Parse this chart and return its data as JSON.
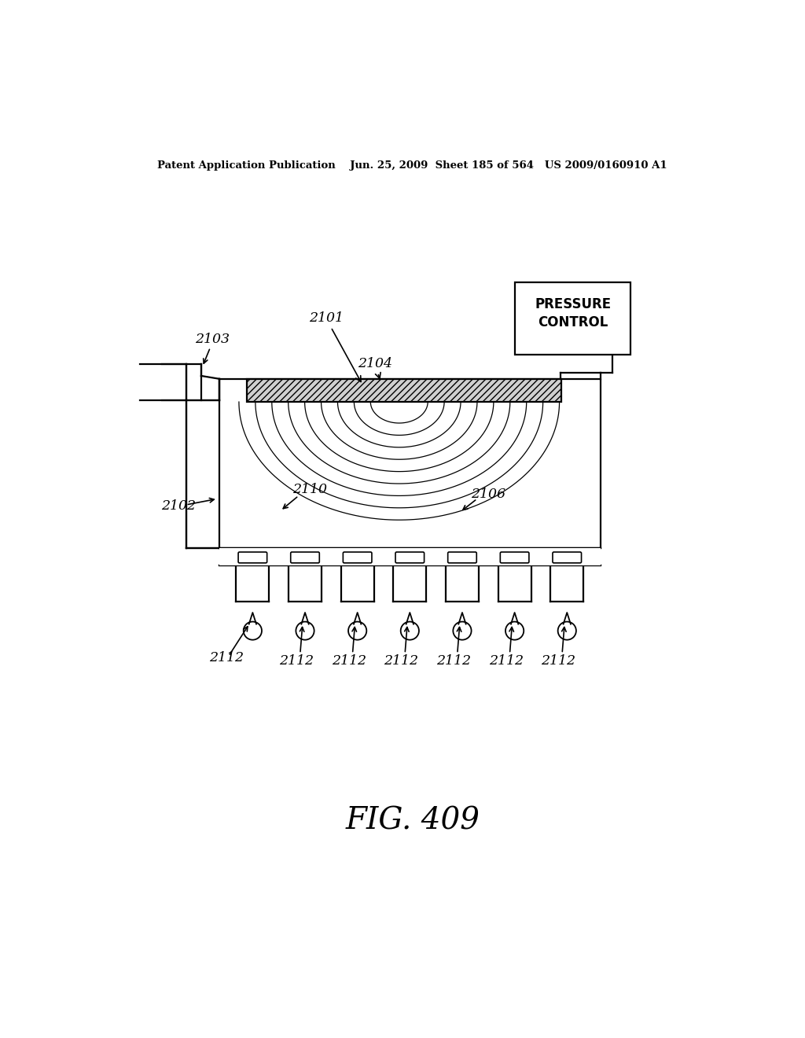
{
  "bg_color": "#ffffff",
  "header_text": "Patent Application Publication    Jun. 25, 2009  Sheet 185 of 564   US 2009/0160910 A1",
  "fig_label": "FIG. 409",
  "lw": 1.6
}
